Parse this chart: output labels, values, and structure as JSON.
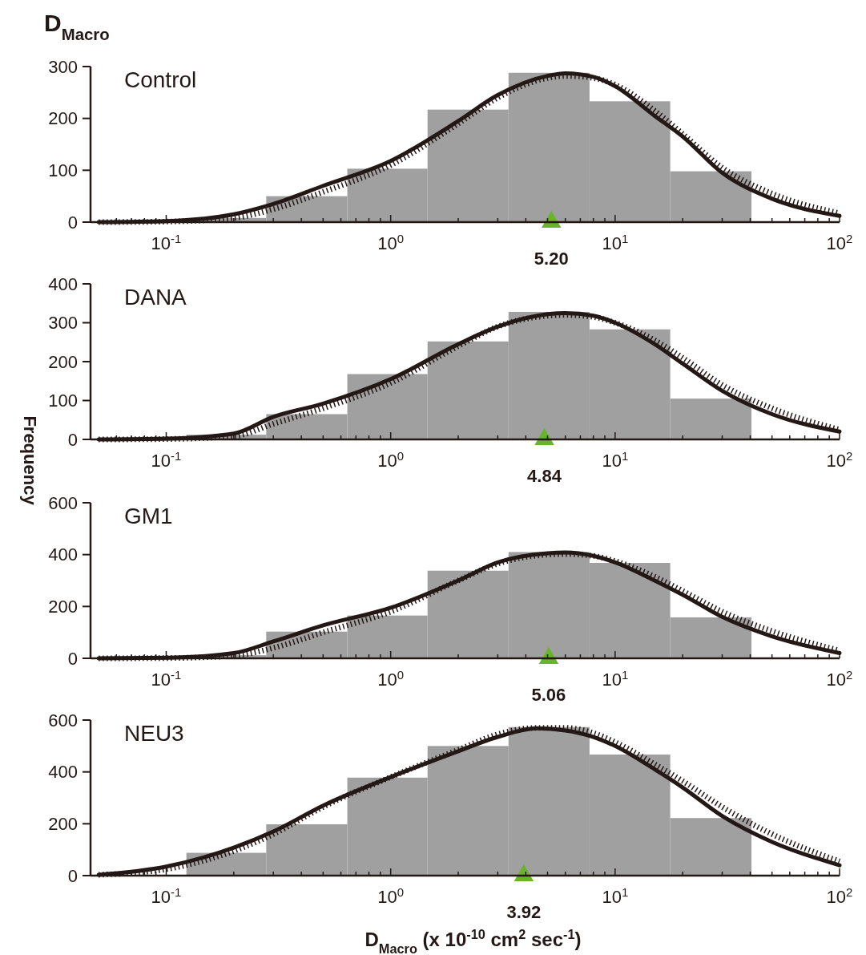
{
  "chart_data": [
    {
      "type": "histogram",
      "title": "Control",
      "annotations": [
        "D$_{Macro}$",
        {
          "text": "5.20",
          "x": 5.2,
          "y": 0
        }
      ],
      "log": "x",
      "xlim": [
        0.046,
        100
      ],
      "ylim": [
        0,
        300
      ],
      "yticks": [
        0,
        100,
        200,
        300
      ],
      "xticks": [
        {
          "value": 0.1,
          "label": "10$^{-1}$"
        },
        {
          "value": 1,
          "label": "10$^{0}$"
        },
        {
          "value": 10,
          "label": "10$^{1}$"
        },
        {
          "value": 100,
          "label": "10$^{2}$"
        },
        {
          "value": 0.06,
          "label": null
        },
        {
          "value": 0.07,
          "label": null
        },
        {
          "value": 0.08,
          "label": null
        },
        {
          "value": 0.09,
          "label": null
        },
        {
          "value": 0.2,
          "label": null
        },
        {
          "value": 0.3,
          "label": null
        },
        {
          "value": 0.4,
          "label": null
        },
        {
          "value": 0.5,
          "label": null
        },
        {
          "value": 0.6,
          "label": null
        },
        {
          "value": 0.7,
          "label": null
        },
        {
          "value": 0.8,
          "label": null
        },
        {
          "value": 0.9,
          "label": null
        },
        {
          "value": 2,
          "label": null
        },
        {
          "value": 3,
          "label": null
        },
        {
          "value": 4,
          "label": null
        },
        {
          "value": 5,
          "label": null
        },
        {
          "value": 6,
          "label": null
        },
        {
          "value": 7,
          "label": null
        },
        {
          "value": 8,
          "label": null
        },
        {
          "value": 9,
          "label": null
        },
        {
          "value": 20,
          "label": null
        },
        {
          "value": 30,
          "label": null
        },
        {
          "value": 40,
          "label": null
        },
        {
          "value": 50,
          "label": null
        },
        {
          "value": 60,
          "label": null
        },
        {
          "value": 70,
          "label": null
        },
        {
          "value": 80,
          "label": null
        },
        {
          "value": 90,
          "label": null
        }
      ],
      "bins": [
        0.123,
        0.279,
        0.641,
        1.46,
        3.35,
        7.69,
        17.6,
        40.5
      ],
      "values": [
        8,
        50,
        103,
        217,
        288,
        233,
        98
      ],
      "color": "#a0a0a0",
      "series": [
        {
          "type": "line",
          "color": "#231815",
          "line_style": "dotted",
          "x": [
            0.05,
            0.1,
            0.2,
            0.3,
            0.5,
            1,
            2,
            3,
            5,
            6,
            8,
            10,
            15,
            20,
            30,
            50,
            100
          ],
          "values": [
            0,
            1,
            8,
            25,
            58,
            110,
            190,
            240,
            278,
            282,
            278,
            265,
            215,
            170,
            105,
            55,
            17
          ]
        },
        {
          "type": "line",
          "color": "#231815",
          "line_style": "solid",
          "x": [
            0.05,
            0.1,
            0.2,
            0.3,
            0.5,
            1,
            2,
            3,
            5,
            6,
            8,
            10,
            15,
            20,
            30,
            50,
            100
          ],
          "values": [
            0,
            2,
            15,
            35,
            70,
            118,
            195,
            245,
            282,
            287,
            280,
            262,
            205,
            165,
            95,
            45,
            12
          ]
        },
        {
          "type": "scatter",
          "marker": "triangle",
          "color": "#6ab42d",
          "x": [
            5.2
          ],
          "values": [
            0
          ]
        }
      ]
    },
    {
      "type": "histogram",
      "title": "DANA",
      "ylabel": "Frequency",
      "annotations": [
        {
          "text": "4.84",
          "x": 4.84,
          "y": 0
        }
      ],
      "log": "x",
      "xlim": [
        0.046,
        100
      ],
      "ylim": [
        0,
        400
      ],
      "yticks": [
        0,
        100,
        200,
        300,
        400
      ],
      "xticks": [
        {
          "value": 0.1,
          "label": "10$^{-1}$"
        },
        {
          "value": 1,
          "label": "10$^{0}$"
        },
        {
          "value": 10,
          "label": "10$^{1}$"
        },
        {
          "value": 100,
          "label": "10$^{2}$"
        },
        {
          "value": 0.06,
          "label": null
        },
        {
          "value": 0.07,
          "label": null
        },
        {
          "value": 0.08,
          "label": null
        },
        {
          "value": 0.09,
          "label": null
        },
        {
          "value": 0.2,
          "label": null
        },
        {
          "value": 0.3,
          "label": null
        },
        {
          "value": 0.4,
          "label": null
        },
        {
          "value": 0.5,
          "label": null
        },
        {
          "value": 0.6,
          "label": null
        },
        {
          "value": 0.7,
          "label": null
        },
        {
          "value": 0.8,
          "label": null
        },
        {
          "value": 0.9,
          "label": null
        },
        {
          "value": 2,
          "label": null
        },
        {
          "value": 3,
          "label": null
        },
        {
          "value": 4,
          "label": null
        },
        {
          "value": 5,
          "label": null
        },
        {
          "value": 6,
          "label": null
        },
        {
          "value": 7,
          "label": null
        },
        {
          "value": 8,
          "label": null
        },
        {
          "value": 9,
          "label": null
        },
        {
          "value": 20,
          "label": null
        },
        {
          "value": 30,
          "label": null
        },
        {
          "value": 40,
          "label": null
        },
        {
          "value": 50,
          "label": null
        },
        {
          "value": 60,
          "label": null
        },
        {
          "value": 70,
          "label": null
        },
        {
          "value": 80,
          "label": null
        },
        {
          "value": 90,
          "label": null
        }
      ],
      "bins": [
        0.123,
        0.279,
        0.641,
        1.46,
        3.35,
        7.69,
        17.6,
        40.5
      ],
      "values": [
        12,
        65,
        168,
        252,
        328,
        283,
        105
      ],
      "color": "#a0a0a0",
      "series": [
        {
          "type": "line",
          "color": "#231815",
          "line_style": "dotted",
          "x": [
            0.05,
            0.1,
            0.2,
            0.3,
            0.5,
            1,
            2,
            3,
            5,
            6,
            8,
            10,
            15,
            20,
            30,
            50,
            100
          ],
          "values": [
            0,
            1,
            8,
            40,
            80,
            145,
            240,
            290,
            318,
            320,
            315,
            300,
            255,
            210,
            140,
            80,
            25
          ]
        },
        {
          "type": "line",
          "color": "#231815",
          "line_style": "solid",
          "x": [
            0.05,
            0.1,
            0.2,
            0.3,
            0.5,
            1,
            2,
            3,
            5,
            6,
            8,
            10,
            15,
            20,
            30,
            50,
            100
          ],
          "values": [
            0,
            2,
            15,
            58,
            92,
            155,
            245,
            290,
            322,
            325,
            318,
            300,
            245,
            195,
            125,
            65,
            20
          ]
        },
        {
          "type": "scatter",
          "marker": "triangle",
          "color": "#6ab42d",
          "x": [
            4.84
          ],
          "values": [
            0
          ]
        }
      ]
    },
    {
      "type": "histogram",
      "title": "GM1",
      "annotations": [
        {
          "text": "5.06",
          "x": 5.06,
          "y": 0
        }
      ],
      "log": "x",
      "xlim": [
        0.046,
        100
      ],
      "ylim": [
        0,
        600
      ],
      "yticks": [
        0,
        200,
        400,
        600
      ],
      "xticks": [
        {
          "value": 0.1,
          "label": "10$^{-1}$"
        },
        {
          "value": 1,
          "label": "10$^{0}$"
        },
        {
          "value": 10,
          "label": "10$^{1}$"
        },
        {
          "value": 100,
          "label": "10$^{2}$"
        },
        {
          "value": 0.06,
          "label": null
        },
        {
          "value": 0.07,
          "label": null
        },
        {
          "value": 0.08,
          "label": null
        },
        {
          "value": 0.09,
          "label": null
        },
        {
          "value": 0.2,
          "label": null
        },
        {
          "value": 0.3,
          "label": null
        },
        {
          "value": 0.4,
          "label": null
        },
        {
          "value": 0.5,
          "label": null
        },
        {
          "value": 0.6,
          "label": null
        },
        {
          "value": 0.7,
          "label": null
        },
        {
          "value": 0.8,
          "label": null
        },
        {
          "value": 0.9,
          "label": null
        },
        {
          "value": 2,
          "label": null
        },
        {
          "value": 3,
          "label": null
        },
        {
          "value": 4,
          "label": null
        },
        {
          "value": 5,
          "label": null
        },
        {
          "value": 6,
          "label": null
        },
        {
          "value": 7,
          "label": null
        },
        {
          "value": 8,
          "label": null
        },
        {
          "value": 9,
          "label": null
        },
        {
          "value": 20,
          "label": null
        },
        {
          "value": 30,
          "label": null
        },
        {
          "value": 40,
          "label": null
        },
        {
          "value": 50,
          "label": null
        },
        {
          "value": 60,
          "label": null
        },
        {
          "value": 70,
          "label": null
        },
        {
          "value": 80,
          "label": null
        },
        {
          "value": 90,
          "label": null
        }
      ],
      "bins": [
        0.123,
        0.279,
        0.641,
        1.46,
        3.35,
        7.69,
        17.6,
        40.5
      ],
      "values": [
        12,
        103,
        165,
        338,
        410,
        368,
        158
      ],
      "color": "#a0a0a0",
      "series": [
        {
          "type": "line",
          "color": "#231815",
          "line_style": "dotted",
          "x": [
            0.05,
            0.1,
            0.2,
            0.3,
            0.5,
            1,
            2,
            3,
            5,
            6,
            8,
            10,
            15,
            20,
            30,
            50,
            100
          ],
          "values": [
            0,
            1,
            10,
            40,
            100,
            180,
            300,
            365,
            400,
            402,
            395,
            375,
            315,
            260,
            180,
            105,
            30
          ]
        },
        {
          "type": "line",
          "color": "#231815",
          "line_style": "solid",
          "x": [
            0.05,
            0.1,
            0.2,
            0.3,
            0.5,
            1,
            2,
            3,
            5,
            6,
            8,
            10,
            15,
            20,
            30,
            50,
            100
          ],
          "values": [
            0,
            2,
            20,
            65,
            127,
            195,
            300,
            370,
            405,
            408,
            395,
            370,
            300,
            245,
            160,
            85,
            20
          ]
        },
        {
          "type": "scatter",
          "marker": "triangle",
          "color": "#6ab42d",
          "x": [
            5.06
          ],
          "values": [
            0
          ]
        }
      ]
    },
    {
      "type": "histogram",
      "title": "NEU3",
      "xlabel": "D$_{Macro}$ (x 10$^{-10}$ cm$^{2}$ sec$^{-1}$)",
      "annotations": [
        {
          "text": "3.92",
          "x": 3.92,
          "y": 0
        }
      ],
      "log": "x",
      "xlim": [
        0.046,
        100
      ],
      "ylim": [
        0,
        600
      ],
      "yticks": [
        0,
        200,
        400,
        600
      ],
      "xticks": [
        {
          "value": 0.1,
          "label": "10$^{-1}$"
        },
        {
          "value": 1,
          "label": "10$^{0}$"
        },
        {
          "value": 10,
          "label": "10$^{1}$"
        },
        {
          "value": 100,
          "label": "10$^{2}$"
        },
        {
          "value": 0.06,
          "label": null
        },
        {
          "value": 0.07,
          "label": null
        },
        {
          "value": 0.08,
          "label": null
        },
        {
          "value": 0.09,
          "label": null
        },
        {
          "value": 0.2,
          "label": null
        },
        {
          "value": 0.3,
          "label": null
        },
        {
          "value": 0.4,
          "label": null
        },
        {
          "value": 0.5,
          "label": null
        },
        {
          "value": 0.6,
          "label": null
        },
        {
          "value": 0.7,
          "label": null
        },
        {
          "value": 0.8,
          "label": null
        },
        {
          "value": 0.9,
          "label": null
        },
        {
          "value": 2,
          "label": null
        },
        {
          "value": 3,
          "label": null
        },
        {
          "value": 4,
          "label": null
        },
        {
          "value": 5,
          "label": null
        },
        {
          "value": 6,
          "label": null
        },
        {
          "value": 7,
          "label": null
        },
        {
          "value": 8,
          "label": null
        },
        {
          "value": 9,
          "label": null
        },
        {
          "value": 20,
          "label": null
        },
        {
          "value": 30,
          "label": null
        },
        {
          "value": 40,
          "label": null
        },
        {
          "value": 50,
          "label": null
        },
        {
          "value": 60,
          "label": null
        },
        {
          "value": 70,
          "label": null
        },
        {
          "value": 80,
          "label": null
        },
        {
          "value": 90,
          "label": null
        }
      ],
      "bins": [
        0.123,
        0.279,
        0.641,
        1.46,
        3.35,
        7.69,
        17.6,
        40.5
      ],
      "values": [
        88,
        198,
        378,
        500,
        573,
        467,
        222
      ],
      "color": "#a0a0a0",
      "series": [
        {
          "type": "line",
          "color": "#231815",
          "line_style": "dotted",
          "x": [
            0.05,
            0.1,
            0.2,
            0.3,
            0.5,
            1,
            2,
            3,
            4.5,
            6,
            8,
            10,
            15,
            20,
            30,
            50,
            100
          ],
          "values": [
            3,
            25,
            95,
            160,
            265,
            380,
            485,
            545,
            570,
            570,
            550,
            515,
            430,
            365,
            265,
            160,
            55
          ]
        },
        {
          "type": "line",
          "color": "#231815",
          "line_style": "solid",
          "x": [
            0.05,
            0.1,
            0.2,
            0.3,
            0.5,
            1,
            2,
            3,
            4.5,
            6,
            8,
            10,
            15,
            20,
            30,
            50,
            100
          ],
          "values": [
            3,
            35,
            108,
            170,
            270,
            380,
            480,
            535,
            568,
            560,
            535,
            500,
            410,
            340,
            230,
            130,
            40
          ]
        },
        {
          "type": "scatter",
          "marker": "triangle",
          "color": "#6ab42d",
          "x": [
            3.92
          ],
          "values": [
            0
          ]
        }
      ]
    }
  ]
}
